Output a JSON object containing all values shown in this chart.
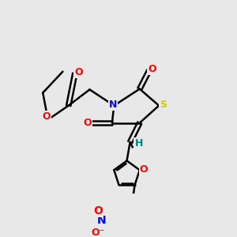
{
  "bg_color": "#e8e8e8",
  "atom_colors": {
    "O": "#ff0000",
    "N": "#0000ff",
    "S": "#cccc00",
    "H": "#008080",
    "C": "#000000"
  },
  "bond_color": "#000000",
  "bond_width": 1.8,
  "font_size": 9
}
